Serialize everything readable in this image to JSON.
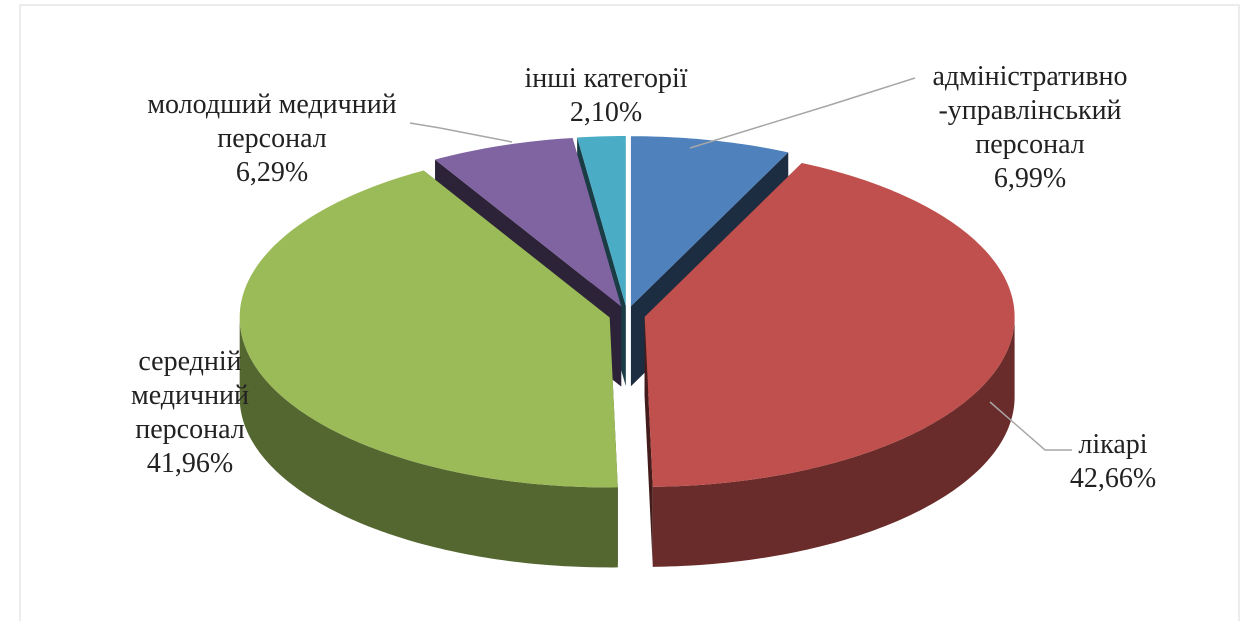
{
  "chart_data": {
    "type": "pie3d",
    "categories": [
      "адміністративно\n-управлінський\nперсонал",
      "лікарі",
      "середній\nмедичний\nперсонал",
      "молодший медичний\nперсонал",
      "інші категорії"
    ],
    "values": [
      6.99,
      42.66,
      41.96,
      6.29,
      2.1
    ],
    "value_labels": [
      "6,99%",
      "42,66%",
      "41,96%",
      "6,29%",
      "2,10%"
    ],
    "colors": [
      "#4f81bd",
      "#c0504d",
      "#9bbb59",
      "#8064a2",
      "#4bacc6"
    ]
  }
}
